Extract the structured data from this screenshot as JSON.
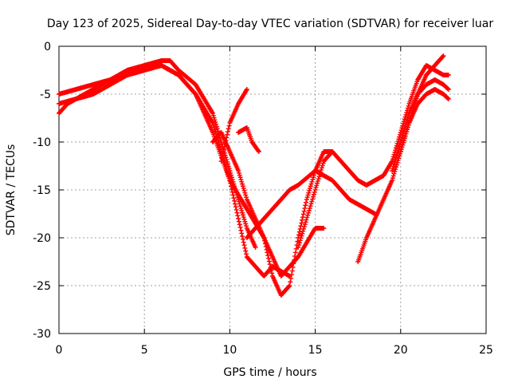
{
  "chart_data": {
    "type": "scatter",
    "title": "Day 123 of 2025, Sidereal Day-to-day VTEC variation (SDTVAR) for receiver luar",
    "xlabel": "GPS time / hours",
    "ylabel": "SDTVAR / TECUs",
    "xlim": [
      0,
      25
    ],
    "ylim": [
      -30,
      0
    ],
    "x_ticks": [
      0,
      5,
      10,
      15,
      20,
      25
    ],
    "y_ticks": [
      0,
      -5,
      -10,
      -15,
      -20,
      -25,
      -30
    ],
    "grid": true,
    "legend": "none",
    "marker": "plus",
    "color": "#ff0000",
    "series": [
      {
        "x": [
          0,
          0.5,
          1,
          1.5,
          2,
          3,
          4,
          5,
          5.5,
          6,
          7,
          8,
          9,
          9.5,
          10,
          11,
          12,
          12.5,
          13,
          14,
          15,
          15.5
        ],
        "y": [
          -7,
          -6,
          -5.5,
          -5,
          -4.5,
          -3.5,
          -3,
          -2.5,
          -2,
          -2,
          -3,
          -5,
          -8,
          -11,
          -14,
          -17,
          -20,
          -22,
          -24,
          -22,
          -19,
          -19
        ]
      },
      {
        "x": [
          0,
          1,
          2,
          3,
          4,
          5,
          6,
          6.5,
          7,
          8,
          9,
          9.5,
          10,
          10.5,
          11,
          11.5
        ],
        "y": [
          -5,
          -4.5,
          -4,
          -3.5,
          -2.5,
          -2,
          -1.5,
          -1.5,
          -2.5,
          -4,
          -7,
          -10,
          -13,
          -16,
          -19,
          -21
        ]
      },
      {
        "x": [
          0,
          1,
          2,
          3,
          4,
          5,
          6,
          7,
          8,
          9,
          10,
          10.5,
          11,
          12,
          12.5,
          13.5
        ],
        "y": [
          -6,
          -5.5,
          -5,
          -4,
          -3,
          -2.5,
          -2,
          -3,
          -5,
          -9,
          -14,
          -18,
          -22,
          -24,
          -23,
          -24
        ]
      },
      {
        "x": [
          9,
          9.5,
          10,
          10.5,
          11,
          12,
          12.5,
          13,
          13.5,
          14,
          14.5,
          15,
          15.5,
          16
        ],
        "y": [
          -10,
          -9,
          -11,
          -13,
          -16,
          -20,
          -24,
          -26,
          -25,
          -20,
          -16,
          -13,
          -11,
          -11
        ]
      },
      {
        "x": [
          10.5,
          11,
          11.3,
          11.7
        ],
        "y": [
          -9,
          -8.5,
          -10,
          -11
        ]
      },
      {
        "x": [
          9.5,
          10,
          10.5,
          11
        ],
        "y": [
          -12,
          -8,
          -6,
          -4.5
        ]
      },
      {
        "x": [
          11,
          12,
          12.5,
          13,
          13.5,
          14,
          15,
          16,
          17,
          18,
          18.5
        ],
        "y": [
          -20,
          -18,
          -17,
          -16,
          -15,
          -14.5,
          -13,
          -14,
          -16,
          -17,
          -17.5
        ]
      },
      {
        "x": [
          14,
          15,
          15.5,
          16,
          16.5,
          17,
          17.5,
          18
        ],
        "y": [
          -21,
          -15,
          -12,
          -11,
          -12,
          -13,
          -14,
          -14.5
        ]
      },
      {
        "x": [
          17.5,
          18,
          18.5,
          19,
          19.5,
          20,
          20.5,
          21,
          21.5,
          22,
          22.5
        ],
        "y": [
          -22.5,
          -20,
          -18,
          -16,
          -14,
          -11,
          -8,
          -5,
          -3,
          -2,
          -1
        ]
      },
      {
        "x": [
          18,
          18.5,
          19,
          19.5,
          20,
          20.5,
          21,
          21.5,
          22,
          22.5,
          22.8
        ],
        "y": [
          -14.5,
          -14,
          -13.5,
          -12,
          -9,
          -6,
          -3.5,
          -2,
          -2.5,
          -3,
          -3
        ]
      },
      {
        "x": [
          19.5,
          20,
          20.5,
          21,
          21.5,
          22,
          22.5,
          22.8
        ],
        "y": [
          -13,
          -10,
          -7,
          -5,
          -4,
          -3.5,
          -4,
          -4.5
        ]
      },
      {
        "x": [
          20,
          20.5,
          21,
          21.5,
          22,
          22.5,
          22.8
        ],
        "y": [
          -11,
          -8,
          -6,
          -5,
          -4.5,
          -5,
          -5.5
        ]
      }
    ]
  }
}
